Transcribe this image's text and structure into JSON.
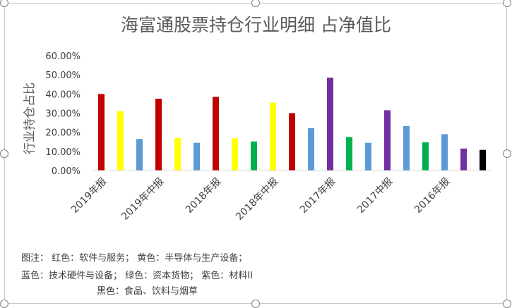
{
  "chart_data": {
    "type": "bar",
    "title": "海富通股票持仓行业明细 占净值比",
    "ylabel": "行业持仓占比",
    "xlabel": "",
    "ylim": [
      0,
      0.6
    ],
    "yticks": [
      "0.00%",
      "10.00%",
      "20.00%",
      "30.00%",
      "40.00%",
      "50.00%",
      "60.00%"
    ],
    "grid": false,
    "periods": [
      "2019年报",
      "2019年中报",
      "2018年报",
      "2018年中报",
      "2017年报",
      "2017中报",
      "2016年报"
    ],
    "period_bar_index": [
      0,
      3,
      6,
      9,
      12,
      15,
      18
    ],
    "bars": [
      {
        "value": 0.4,
        "color": "#C00000"
      },
      {
        "value": 0.31,
        "color": "#FFFF00"
      },
      {
        "value": 0.165,
        "color": "#5B9BD5"
      },
      {
        "value": 0.375,
        "color": "#C00000"
      },
      {
        "value": 0.17,
        "color": "#FFFF00"
      },
      {
        "value": 0.145,
        "color": "#5B9BD5"
      },
      {
        "value": 0.385,
        "color": "#C00000"
      },
      {
        "value": 0.168,
        "color": "#FFFF00"
      },
      {
        "value": 0.152,
        "color": "#00B050"
      },
      {
        "value": 0.355,
        "color": "#FFFF00"
      },
      {
        "value": 0.3,
        "color": "#C00000"
      },
      {
        "value": 0.222,
        "color": "#5B9BD5"
      },
      {
        "value": 0.485,
        "color": "#7030A0"
      },
      {
        "value": 0.175,
        "color": "#00B050"
      },
      {
        "value": 0.145,
        "color": "#5B9BD5"
      },
      {
        "value": 0.315,
        "color": "#7030A0"
      },
      {
        "value": 0.232,
        "color": "#5B9BD5"
      },
      {
        "value": 0.148,
        "color": "#00B050"
      },
      {
        "value": 0.19,
        "color": "#5B9BD5"
      },
      {
        "value": 0.115,
        "color": "#7030A0"
      },
      {
        "value": 0.108,
        "color": "#000000"
      }
    ],
    "annotations": [
      "图注：  红色：软件与服务；  黄色：半导体与生产设备；",
      "蓝色：技术硬件与设备；  绿色：资本货物；  紫色：材料II",
      "黑色：食品、饮料与烟草"
    ]
  }
}
